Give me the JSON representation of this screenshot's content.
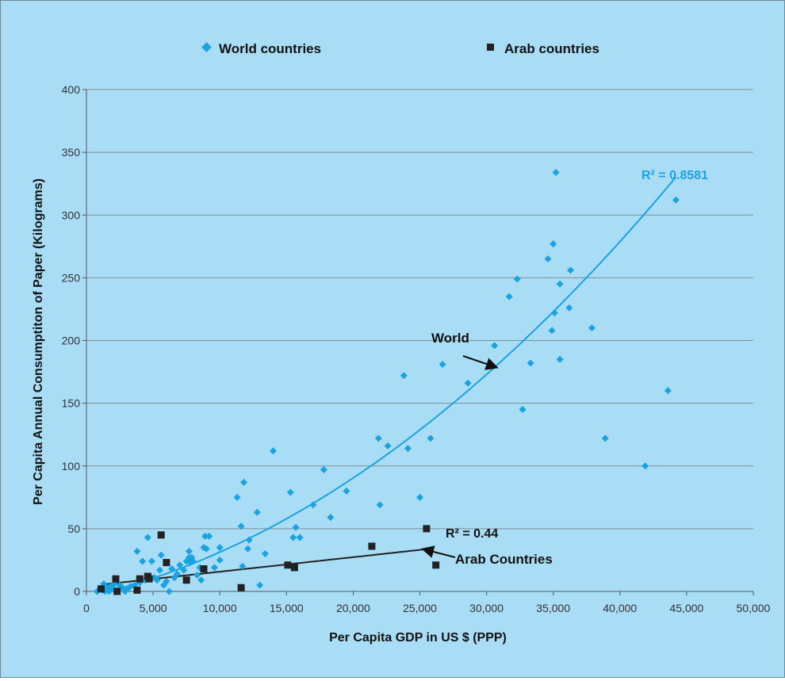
{
  "chart_data": {
    "type": "scatter",
    "title": "",
    "xlabel": "Per Capita GDP in US $ (PPP)",
    "ylabel": "Per Capita Annual Consumptiton of Paper (Kilograms)",
    "xlim": [
      0,
      50000
    ],
    "ylim": [
      0,
      400
    ],
    "x_ticks": [
      0,
      5000,
      10000,
      15000,
      20000,
      25000,
      30000,
      35000,
      40000,
      45000,
      50000
    ],
    "x_tick_labels": [
      "0",
      "5,000",
      "10,000",
      "15,000",
      "20,000",
      "25,000",
      "30,000",
      "35,000",
      "40,000",
      "45,000",
      "50,000"
    ],
    "y_ticks": [
      0,
      50,
      100,
      150,
      200,
      250,
      300,
      350,
      400
    ],
    "y_tick_labels": [
      "0",
      "50",
      "100",
      "150",
      "200",
      "250",
      "300",
      "350",
      "400"
    ],
    "grid": "horizontal",
    "legend_position": "top",
    "series": [
      {
        "name": "World countries",
        "marker": "diamond",
        "color": "#1aa3e0",
        "points": [
          [
            800,
            0
          ],
          [
            1000,
            2
          ],
          [
            1200,
            1
          ],
          [
            1300,
            6
          ],
          [
            1400,
            0
          ],
          [
            1500,
            3
          ],
          [
            1700,
            0
          ],
          [
            1800,
            4
          ],
          [
            2000,
            2
          ],
          [
            2100,
            6
          ],
          [
            2300,
            1
          ],
          [
            2500,
            5
          ],
          [
            2700,
            3
          ],
          [
            2900,
            0
          ],
          [
            3100,
            2
          ],
          [
            3300,
            4
          ],
          [
            3600,
            5
          ],
          [
            3800,
            32
          ],
          [
            4000,
            7
          ],
          [
            4200,
            24
          ],
          [
            4400,
            9
          ],
          [
            4600,
            43
          ],
          [
            4700,
            12
          ],
          [
            4900,
            24
          ],
          [
            5100,
            11
          ],
          [
            5300,
            9
          ],
          [
            5500,
            17
          ],
          [
            5600,
            29
          ],
          [
            5800,
            5
          ],
          [
            6000,
            8
          ],
          [
            6200,
            0
          ],
          [
            6400,
            18
          ],
          [
            6600,
            11
          ],
          [
            6800,
            14
          ],
          [
            7000,
            21
          ],
          [
            7300,
            17
          ],
          [
            7500,
            24
          ],
          [
            7700,
            27
          ],
          [
            7700,
            32
          ],
          [
            7800,
            23
          ],
          [
            7900,
            27
          ],
          [
            8000,
            24
          ],
          [
            8300,
            13
          ],
          [
            8500,
            19
          ],
          [
            8600,
            9
          ],
          [
            8800,
            35
          ],
          [
            8900,
            44
          ],
          [
            9000,
            34
          ],
          [
            9200,
            44
          ],
          [
            9600,
            19
          ],
          [
            10000,
            35
          ],
          [
            10000,
            25
          ],
          [
            11300,
            75
          ],
          [
            11600,
            52
          ],
          [
            11700,
            20
          ],
          [
            11800,
            87
          ],
          [
            12100,
            34
          ],
          [
            12200,
            41
          ],
          [
            12800,
            63
          ],
          [
            13000,
            5
          ],
          [
            13400,
            30
          ],
          [
            14000,
            112
          ],
          [
            15300,
            79
          ],
          [
            15500,
            43
          ],
          [
            15700,
            51
          ],
          [
            16000,
            43
          ],
          [
            17000,
            69
          ],
          [
            17800,
            97
          ],
          [
            18300,
            59
          ],
          [
            19500,
            80
          ],
          [
            21900,
            122
          ],
          [
            22000,
            69
          ],
          [
            22600,
            116
          ],
          [
            23800,
            172
          ],
          [
            24100,
            114
          ],
          [
            25000,
            75
          ],
          [
            25800,
            122
          ],
          [
            26700,
            181
          ],
          [
            28600,
            166
          ],
          [
            30600,
            196
          ],
          [
            32700,
            145
          ],
          [
            31700,
            235
          ],
          [
            32300,
            249
          ],
          [
            33300,
            182
          ],
          [
            34600,
            265
          ],
          [
            34900,
            208
          ],
          [
            35000,
            277
          ],
          [
            35100,
            222
          ],
          [
            35200,
            334
          ],
          [
            35500,
            245
          ],
          [
            35500,
            185
          ],
          [
            36200,
            226
          ],
          [
            36300,
            256
          ],
          [
            37900,
            210
          ],
          [
            38900,
            122
          ],
          [
            41900,
            100
          ],
          [
            43600,
            160
          ],
          [
            44200,
            312
          ]
        ]
      },
      {
        "name": "Arab countries",
        "marker": "square",
        "color": "#222222",
        "points": [
          [
            1100,
            2
          ],
          [
            2200,
            10
          ],
          [
            2300,
            0
          ],
          [
            3800,
            1
          ],
          [
            4000,
            10
          ],
          [
            4600,
            12
          ],
          [
            4700,
            10
          ],
          [
            5600,
            45
          ],
          [
            6000,
            23
          ],
          [
            7500,
            9
          ],
          [
            8800,
            18
          ],
          [
            11600,
            3
          ],
          [
            15100,
            21
          ],
          [
            15600,
            19
          ],
          [
            21400,
            36
          ],
          [
            25500,
            50
          ],
          [
            26200,
            21
          ]
        ]
      }
    ],
    "trendlines": [
      {
        "name": "World",
        "type": "polynomial",
        "color": "#1aa3e0",
        "r2_label": "R² = 0.8581",
        "x_range": [
          800,
          44200
        ],
        "coefficients": [
          -4.4,
          0.0024,
          1.17e-07
        ]
      },
      {
        "name": "Arab Countries",
        "type": "linear",
        "color": "#222222",
        "r2_label": "R² = 0.44",
        "x_range": [
          1100,
          25500
        ],
        "coefficients": [
          4.1,
          0.00116
        ]
      }
    ],
    "annotations": [
      {
        "text": "World",
        "points_to": "World trendline"
      },
      {
        "text": "Arab Countries",
        "points_to": "Arab trendline"
      }
    ]
  }
}
